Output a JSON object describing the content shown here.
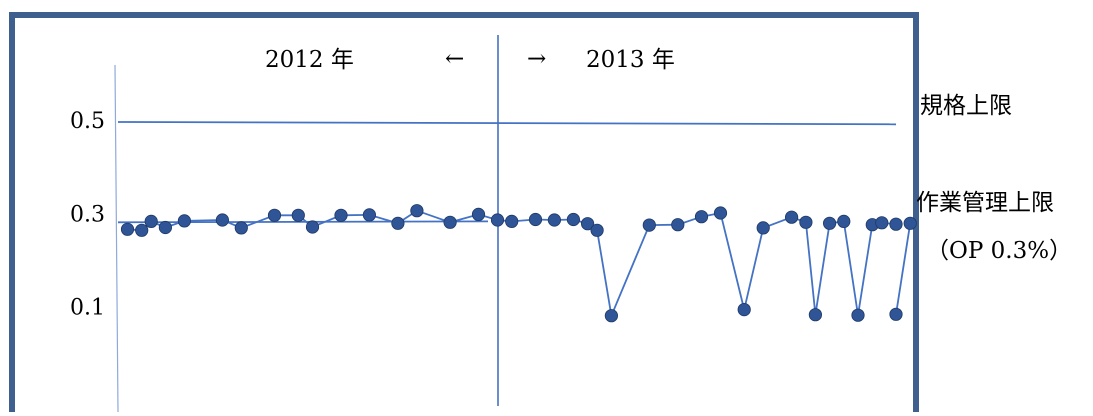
{
  "chart_data": {
    "type": "line",
    "period_left_label": "2012 年",
    "period_right_label": "2013 年",
    "arrow_left": "←",
    "arrow_right": "→",
    "y_ticks": [
      0.5,
      0.3,
      0.1
    ],
    "y_tick_labels": [
      "0.5",
      "0.3",
      "0.1"
    ],
    "ylim": [
      -0.1,
      0.68
    ],
    "xlim": [
      0,
      82
    ],
    "year_boundary_x": 39,
    "spec_limit": {
      "label": "規格上限",
      "start": 0.5,
      "end": 0.495
    },
    "control_limit": {
      "label_line1": "作業管理上限",
      "label_line2": "（OP 0.3%）",
      "start": 0.285,
      "end": 0.287
    },
    "series": [
      {
        "x": [
          1,
          2.5,
          3.5,
          5,
          7,
          11,
          13,
          16.5,
          19,
          20.5,
          23.5,
          26.5,
          29.5,
          31.5,
          35,
          38,
          40,
          41.5,
          44,
          46,
          48,
          49.5,
          50.5,
          52,
          56,
          59,
          61.5,
          63.5,
          66,
          68,
          71,
          72.5,
          73.5,
          75,
          76.5,
          78,
          79.5,
          80.5,
          82
        ],
        "y": [
          0.27,
          0.268,
          0.287,
          0.274,
          0.288,
          0.29,
          0.273,
          0.3,
          0.3,
          0.275,
          0.3,
          0.301,
          0.283,
          0.31,
          0.285,
          0.302,
          0.29,
          0.287,
          0.291,
          0.29,
          0.291,
          0.282,
          0.268,
          0.085,
          0.279,
          0.28,
          0.297,
          0.305,
          0.098,
          0.273,
          0.296,
          0.285,
          0.087,
          0.283,
          0.287,
          0.086,
          0.28,
          0.284,
          0.281
        ]
      },
      {
        "x": [
          82,
          83.5
        ],
        "y": [
          0.088,
          0.283
        ]
      }
    ],
    "colors": {
      "line": "#4472c4",
      "marker": "#2f5597",
      "frame": "#3f5f8f"
    }
  }
}
